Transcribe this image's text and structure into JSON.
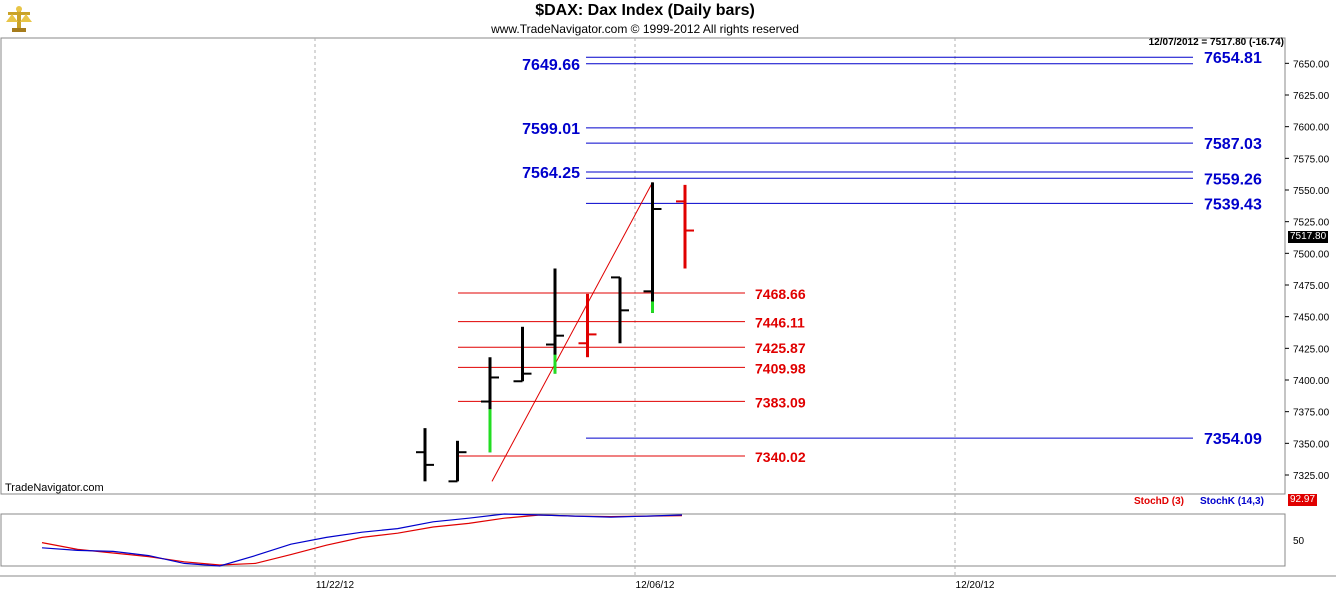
{
  "header": {
    "title": "$DAX:  Dax Index  (Daily bars)",
    "subtitle": "www.TradeNavigator.com © 1999-2012 All rights reserved",
    "readout": "12/07/2012 = 7517.80 (-16.74)",
    "watermark": "TradeNavigator.com",
    "logo_icon": "scales-logo-icon"
  },
  "colors": {
    "bull_bar": "#000000",
    "bear_bar": "#e00000",
    "low_tail": "#22dd22",
    "blue_level": "#0000cc",
    "red_level": "#e00000",
    "grid": "#b0b0b0",
    "stoch_k": "#0000cc",
    "stoch_d": "#e00000"
  },
  "chart_data": [
    {
      "type": "ohlc",
      "ylim": [
        7310,
        7670
      ],
      "yticks": [
        "7650.00",
        "7625.00",
        "7600.00",
        "7575.00",
        "7550.00",
        "7525.00",
        "7500.00",
        "7475.00",
        "7450.00",
        "7425.00",
        "7400.00",
        "7375.00",
        "7350.00",
        "7325.00"
      ],
      "xticks": [
        "11/22/12",
        "12/06/12",
        "12/20/12"
      ],
      "last_price_label": "7517.80",
      "bars": [
        {
          "o": 7343,
          "h": 7362,
          "l": 7320,
          "c": 7333,
          "color": "black"
        },
        {
          "o": 7320,
          "h": 7352,
          "l": 7320,
          "c": 7343,
          "color": "black"
        },
        {
          "o": 7383,
          "h": 7418,
          "l": 7343,
          "c": 7402,
          "color": "black",
          "tail": [
            7343,
            7377
          ]
        },
        {
          "o": 7399,
          "h": 7442,
          "l": 7399,
          "c": 7405,
          "color": "black"
        },
        {
          "o": 7428,
          "h": 7488,
          "l": 7405,
          "c": 7435,
          "color": "black",
          "tail": [
            7405,
            7420
          ]
        },
        {
          "o": 7429,
          "h": 7468,
          "l": 7418,
          "c": 7436,
          "color": "red"
        },
        {
          "o": 7481,
          "h": 7481,
          "l": 7429,
          "c": 7455,
          "color": "black"
        },
        {
          "o": 7470,
          "h": 7556,
          "l": 7453,
          "c": 7535,
          "color": "black",
          "tail": [
            7453,
            7462
          ]
        },
        {
          "o": 7541,
          "h": 7554,
          "l": 7488,
          "c": 7518,
          "color": "red"
        }
      ],
      "levels_blue": [
        {
          "value": 7654.81,
          "label": "7654.81",
          "side": "right"
        },
        {
          "value": 7649.66,
          "label": "7649.66",
          "side": "left"
        },
        {
          "value": 7599.01,
          "label": "7599.01",
          "side": "left"
        },
        {
          "value": 7587.03,
          "label": "7587.03",
          "side": "right"
        },
        {
          "value": 7564.25,
          "label": "7564.25",
          "side": "left"
        },
        {
          "value": 7559.26,
          "label": "7559.26",
          "side": "right"
        },
        {
          "value": 7539.43,
          "label": "7539.43",
          "side": "right"
        },
        {
          "value": 7354.09,
          "label": "7354.09",
          "side": "right"
        }
      ],
      "levels_red": [
        {
          "value": 7468.66,
          "label": "7468.66"
        },
        {
          "value": 7446.11,
          "label": "7446.11"
        },
        {
          "value": 7425.87,
          "label": "7425.87"
        },
        {
          "value": 7409.98,
          "label": "7409.98"
        },
        {
          "value": 7383.09,
          "label": "7383.09"
        },
        {
          "value": 7340.02,
          "label": "7340.02"
        }
      ],
      "trendline": {
        "from": 7320,
        "to": 7556
      }
    },
    {
      "type": "line",
      "indicator": "Stochastic",
      "ytick": "50",
      "last_value_label": "92.97",
      "series": [
        {
          "name": "StochD (3)",
          "color": "#e00000",
          "values": [
            45,
            32,
            25,
            18,
            8,
            2,
            5,
            22,
            40,
            55,
            63,
            75,
            82,
            92,
            98,
            96,
            95,
            96,
            97
          ]
        },
        {
          "name": "StochK (14,3)",
          "color": "#0000cc",
          "values": [
            35,
            30,
            28,
            20,
            5,
            0,
            20,
            42,
            55,
            65,
            72,
            85,
            92,
            100,
            98,
            96,
            94,
            96,
            98
          ]
        }
      ]
    }
  ]
}
